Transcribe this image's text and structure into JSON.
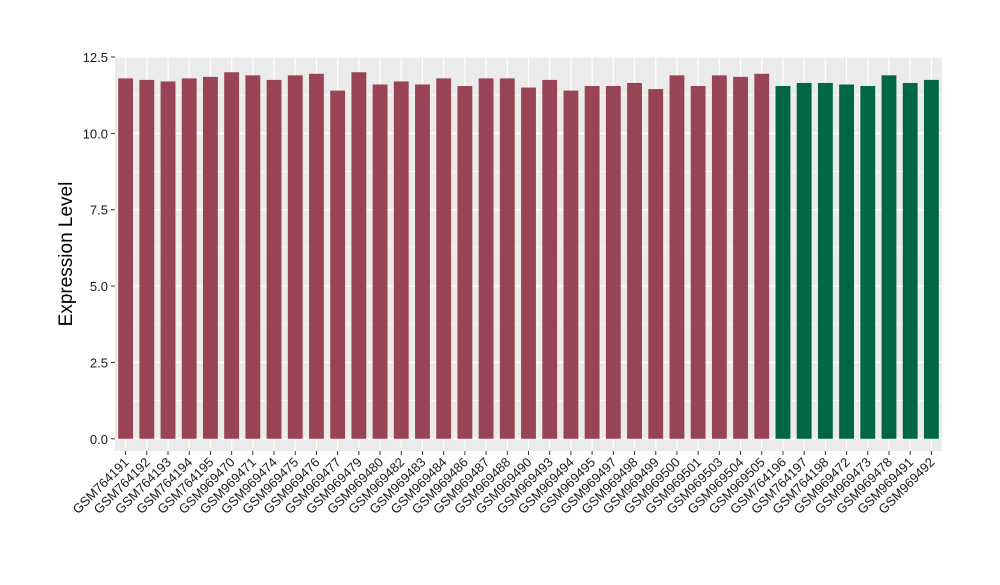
{
  "chart_data": {
    "type": "bar",
    "title": "",
    "xlabel": "",
    "ylabel": "Expression Level",
    "ylim": [
      -0.4,
      12.5
    ],
    "yticks": [
      "0.0",
      "2.5",
      "5.0",
      "7.5",
      "10.0",
      "12.5"
    ],
    "grid": true,
    "legend": "none",
    "colors": {
      "group_a": "#994455",
      "group_b": "#006644",
      "panel": "#ebebeb",
      "grid": "#ffffff"
    },
    "categories": [
      "GSM764191",
      "GSM764192",
      "GSM764193",
      "GSM764194",
      "GSM764195",
      "GSM969470",
      "GSM969471",
      "GSM969474",
      "GSM969475",
      "GSM969476",
      "GSM969477",
      "GSM969479",
      "GSM969480",
      "GSM969482",
      "GSM969483",
      "GSM969484",
      "GSM969486",
      "GSM969487",
      "GSM969488",
      "GSM969490",
      "GSM969493",
      "GSM969494",
      "GSM969495",
      "GSM969497",
      "GSM969498",
      "GSM969499",
      "GSM969500",
      "GSM969501",
      "GSM969503",
      "GSM969504",
      "GSM969505",
      "GSM764196",
      "GSM764197",
      "GSM764198",
      "GSM969472",
      "GSM969473",
      "GSM969478",
      "GSM969491",
      "GSM969492"
    ],
    "values": [
      11.8,
      11.75,
      11.7,
      11.8,
      11.85,
      12.0,
      11.9,
      11.75,
      11.9,
      11.95,
      11.4,
      12.0,
      11.6,
      11.7,
      11.6,
      11.8,
      11.55,
      11.8,
      11.8,
      11.5,
      11.75,
      11.4,
      11.55,
      11.55,
      11.65,
      11.45,
      11.9,
      11.55,
      11.9,
      11.85,
      11.95,
      11.55,
      11.65,
      11.65,
      11.6,
      11.55,
      11.9,
      11.65,
      11.75
    ],
    "groups": [
      "a",
      "a",
      "a",
      "a",
      "a",
      "a",
      "a",
      "a",
      "a",
      "a",
      "a",
      "a",
      "a",
      "a",
      "a",
      "a",
      "a",
      "a",
      "a",
      "a",
      "a",
      "a",
      "a",
      "a",
      "a",
      "a",
      "a",
      "a",
      "a",
      "a",
      "a",
      "b",
      "b",
      "b",
      "b",
      "b",
      "b",
      "b",
      "b"
    ]
  }
}
